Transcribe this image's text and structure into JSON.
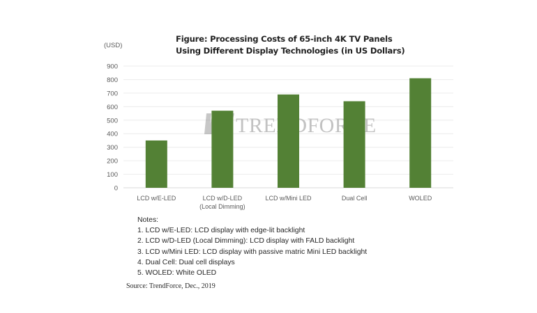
{
  "chart_data": {
    "type": "bar",
    "title": [
      "Figure: Processing Costs of 65-inch 4K TV Panels",
      "Using Different Display Technologies (in US Dollars)"
    ],
    "ylabel": "(USD)",
    "xlabel": "",
    "categories": [
      [
        "LCD w/E-LED"
      ],
      [
        "LCD w/D-LED",
        "(Local Dimming)"
      ],
      [
        "LCD w/Mini LED"
      ],
      [
        "Dual Cell"
      ],
      [
        "WOLED"
      ]
    ],
    "values": [
      350,
      570,
      690,
      640,
      810
    ],
    "ylim": [
      0,
      900
    ],
    "yticks": [
      0,
      100,
      200,
      300,
      400,
      500,
      600,
      700,
      800,
      900
    ],
    "grid": true,
    "legend": "none",
    "bar_color": "#538135",
    "grid_color": "#ececec",
    "watermark": "TRENDFORCE"
  },
  "notes": {
    "heading": "Notes:",
    "items": [
      "1. LCD w/E-LED: LCD display with edge-lit backlight",
      "2. LCD w/D-LED (Local Dimming): LCD display with FALD backlight",
      "3. LCD w/Mini LED: LCD display with passive matric Mini LED backlight",
      "4. Dual Cell: Dual cell displays",
      "5. WOLED: White OLED"
    ]
  },
  "source": "Source: TrendForce, Dec., 2019"
}
